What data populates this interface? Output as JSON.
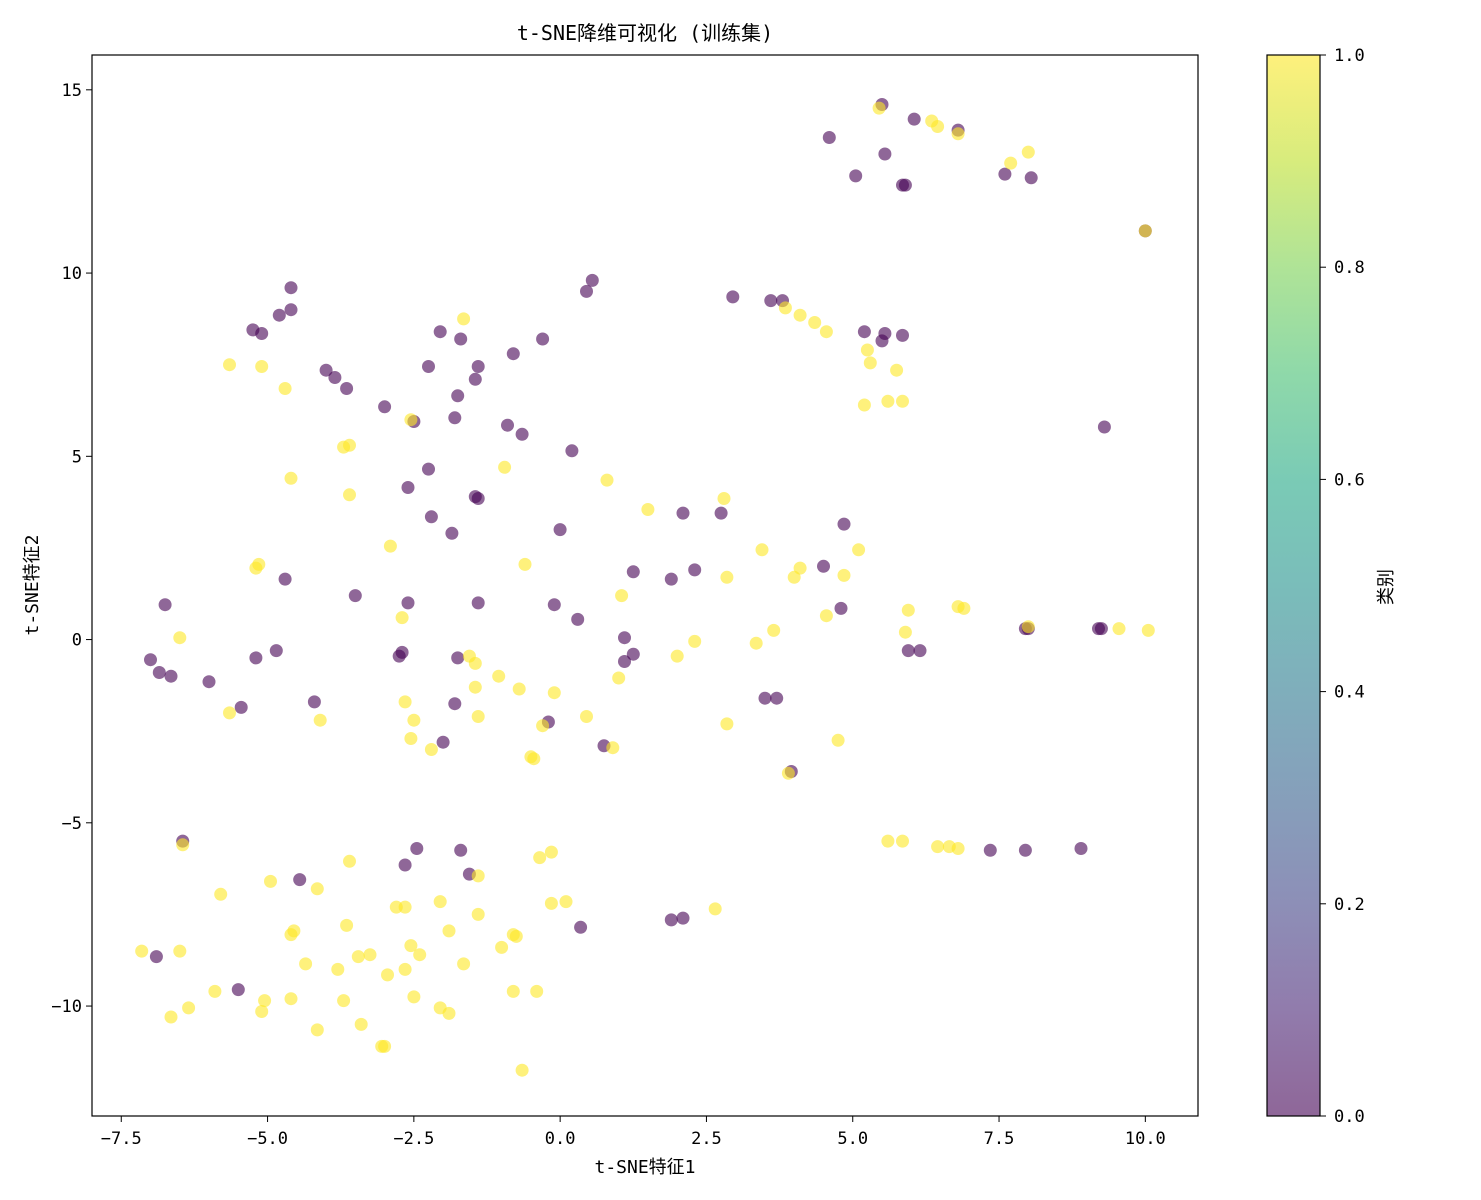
{
  "chart_data": {
    "type": "scatter",
    "title": "t-SNE降维可视化 (训练集)",
    "xlabel": "t-SNE特征1",
    "ylabel": "t-SNE特征2",
    "xlim": [
      -8.0,
      10.9
    ],
    "ylim": [
      -13.0,
      15.95
    ],
    "xticks": [
      -7.5,
      -5.0,
      -2.5,
      0.0,
      2.5,
      5.0,
      7.5,
      10.0
    ],
    "xtick_labels": [
      "−7.5",
      "−5.0",
      "−2.5",
      "0.0",
      "2.5",
      "5.0",
      "7.5",
      "10.0"
    ],
    "yticks": [
      -10,
      -5,
      0,
      5,
      10,
      15
    ],
    "ytick_labels": [
      "−10",
      "−5",
      "0",
      "5",
      "10",
      "15"
    ],
    "grid": false,
    "colormap": "viridis",
    "marker_alpha": 0.6,
    "class_colors": {
      "0": "#440154",
      "1": "#fde725"
    },
    "colorbar": {
      "label": "类别",
      "range": [
        0.0,
        1.0
      ],
      "ticks": [
        0.0,
        0.2,
        0.4,
        0.6,
        0.8,
        1.0
      ],
      "tick_labels": [
        "0.0",
        "0.2",
        "0.4",
        "0.6",
        "0.8",
        "1.0"
      ]
    },
    "points": [
      {
        "x": 5.5,
        "y": 14.6,
        "c": 0
      },
      {
        "x": 6.05,
        "y": 14.2,
        "c": 0
      },
      {
        "x": 6.8,
        "y": 13.9,
        "c": 0
      },
      {
        "x": 4.6,
        "y": 13.7,
        "c": 0
      },
      {
        "x": 5.55,
        "y": 13.25,
        "c": 0
      },
      {
        "x": 5.05,
        "y": 12.65,
        "c": 0
      },
      {
        "x": 5.85,
        "y": 12.4,
        "c": 0
      },
      {
        "x": 5.9,
        "y": 12.4,
        "c": 0
      },
      {
        "x": 7.6,
        "y": 12.7,
        "c": 0
      },
      {
        "x": 8.05,
        "y": 12.6,
        "c": 0
      },
      {
        "x": 10.0,
        "y": 11.15,
        "c": 0
      },
      {
        "x": 0.55,
        "y": 9.8,
        "c": 0
      },
      {
        "x": 0.45,
        "y": 9.5,
        "c": 0
      },
      {
        "x": 2.95,
        "y": 9.35,
        "c": 0
      },
      {
        "x": 3.6,
        "y": 9.25,
        "c": 0
      },
      {
        "x": 3.8,
        "y": 9.25,
        "c": 0
      },
      {
        "x": -4.6,
        "y": 9.6,
        "c": 0
      },
      {
        "x": -4.6,
        "y": 9.0,
        "c": 0
      },
      {
        "x": -4.8,
        "y": 8.85,
        "c": 0
      },
      {
        "x": -5.25,
        "y": 8.45,
        "c": 0
      },
      {
        "x": -5.1,
        "y": 8.35,
        "c": 0
      },
      {
        "x": -2.05,
        "y": 8.4,
        "c": 0
      },
      {
        "x": -1.7,
        "y": 8.2,
        "c": 0
      },
      {
        "x": -0.3,
        "y": 8.2,
        "c": 0
      },
      {
        "x": -0.8,
        "y": 7.8,
        "c": 0
      },
      {
        "x": -2.25,
        "y": 7.45,
        "c": 0
      },
      {
        "x": -1.4,
        "y": 7.45,
        "c": 0
      },
      {
        "x": -1.45,
        "y": 7.1,
        "c": 0
      },
      {
        "x": -4.0,
        "y": 7.35,
        "c": 0
      },
      {
        "x": -3.85,
        "y": 7.15,
        "c": 0
      },
      {
        "x": -3.65,
        "y": 6.85,
        "c": 0
      },
      {
        "x": -1.75,
        "y": 6.65,
        "c": 0
      },
      {
        "x": -3.0,
        "y": 6.35,
        "c": 0
      },
      {
        "x": -1.8,
        "y": 6.05,
        "c": 0
      },
      {
        "x": -2.5,
        "y": 5.95,
        "c": 0
      },
      {
        "x": -0.9,
        "y": 5.85,
        "c": 0
      },
      {
        "x": -0.65,
        "y": 5.6,
        "c": 0
      },
      {
        "x": 0.2,
        "y": 5.15,
        "c": 0
      },
      {
        "x": 5.2,
        "y": 8.4,
        "c": 0
      },
      {
        "x": 5.5,
        "y": 8.15,
        "c": 0
      },
      {
        "x": 5.55,
        "y": 8.35,
        "c": 0
      },
      {
        "x": 5.85,
        "y": 8.3,
        "c": 0
      },
      {
        "x": 9.3,
        "y": 5.8,
        "c": 0
      },
      {
        "x": -2.25,
        "y": 4.65,
        "c": 0
      },
      {
        "x": -2.6,
        "y": 4.15,
        "c": 0
      },
      {
        "x": -1.45,
        "y": 3.9,
        "c": 0
      },
      {
        "x": -1.4,
        "y": 3.85,
        "c": 0
      },
      {
        "x": -2.2,
        "y": 3.35,
        "c": 0
      },
      {
        "x": -1.85,
        "y": 2.9,
        "c": 0
      },
      {
        "x": 0.0,
        "y": 3.0,
        "c": 0
      },
      {
        "x": 2.1,
        "y": 3.45,
        "c": 0
      },
      {
        "x": 2.75,
        "y": 3.45,
        "c": 0
      },
      {
        "x": 4.85,
        "y": 3.15,
        "c": 0
      },
      {
        "x": 1.25,
        "y": 1.85,
        "c": 0
      },
      {
        "x": 1.9,
        "y": 1.65,
        "c": 0
      },
      {
        "x": 2.3,
        "y": 1.9,
        "c": 0
      },
      {
        "x": 4.5,
        "y": 2.0,
        "c": 0
      },
      {
        "x": -4.7,
        "y": 1.65,
        "c": 0
      },
      {
        "x": -3.5,
        "y": 1.2,
        "c": 0
      },
      {
        "x": -2.6,
        "y": 1.0,
        "c": 0
      },
      {
        "x": -1.4,
        "y": 1.0,
        "c": 0
      },
      {
        "x": -0.1,
        "y": 0.95,
        "c": 0
      },
      {
        "x": -6.75,
        "y": 0.95,
        "c": 0
      },
      {
        "x": 0.3,
        "y": 0.55,
        "c": 0
      },
      {
        "x": 4.8,
        "y": 0.85,
        "c": 0
      },
      {
        "x": 1.1,
        "y": 0.05,
        "c": 0
      },
      {
        "x": 1.25,
        "y": -0.4,
        "c": 0
      },
      {
        "x": 1.1,
        "y": -0.6,
        "c": 0
      },
      {
        "x": -7.0,
        "y": -0.55,
        "c": 0
      },
      {
        "x": -6.85,
        "y": -0.9,
        "c": 0
      },
      {
        "x": -6.65,
        "y": -1.0,
        "c": 0
      },
      {
        "x": -6.0,
        "y": -1.15,
        "c": 0
      },
      {
        "x": -5.2,
        "y": -0.5,
        "c": 0
      },
      {
        "x": -4.85,
        "y": -0.3,
        "c": 0
      },
      {
        "x": -2.7,
        "y": -0.35,
        "c": 0
      },
      {
        "x": -2.75,
        "y": -0.45,
        "c": 0
      },
      {
        "x": -1.75,
        "y": -0.5,
        "c": 0
      },
      {
        "x": -4.2,
        "y": -1.7,
        "c": 0
      },
      {
        "x": -5.45,
        "y": -1.85,
        "c": 0
      },
      {
        "x": -1.8,
        "y": -1.75,
        "c": 0
      },
      {
        "x": -0.2,
        "y": -2.25,
        "c": 0
      },
      {
        "x": -2.0,
        "y": -2.8,
        "c": 0
      },
      {
        "x": 0.75,
        "y": -2.9,
        "c": 0
      },
      {
        "x": 3.5,
        "y": -1.6,
        "c": 0
      },
      {
        "x": 3.7,
        "y": -1.6,
        "c": 0
      },
      {
        "x": 3.95,
        "y": -3.6,
        "c": 0
      },
      {
        "x": 5.95,
        "y": -0.3,
        "c": 0
      },
      {
        "x": 6.15,
        "y": -0.3,
        "c": 0
      },
      {
        "x": 7.95,
        "y": 0.3,
        "c": 0
      },
      {
        "x": 8.0,
        "y": 0.3,
        "c": 0
      },
      {
        "x": 9.2,
        "y": 0.3,
        "c": 0
      },
      {
        "x": 9.25,
        "y": 0.3,
        "c": 0
      },
      {
        "x": -6.45,
        "y": -5.5,
        "c": 0
      },
      {
        "x": -2.45,
        "y": -5.7,
        "c": 0
      },
      {
        "x": -1.7,
        "y": -5.75,
        "c": 0
      },
      {
        "x": -2.65,
        "y": -6.15,
        "c": 0
      },
      {
        "x": -1.55,
        "y": -6.4,
        "c": 0
      },
      {
        "x": -4.45,
        "y": -6.55,
        "c": 0
      },
      {
        "x": 1.9,
        "y": -7.65,
        "c": 0
      },
      {
        "x": 2.1,
        "y": -7.6,
        "c": 0
      },
      {
        "x": 0.35,
        "y": -7.85,
        "c": 0
      },
      {
        "x": -6.9,
        "y": -8.65,
        "c": 0
      },
      {
        "x": -5.5,
        "y": -9.55,
        "c": 0
      },
      {
        "x": 7.35,
        "y": -5.75,
        "c": 0
      },
      {
        "x": 7.95,
        "y": -5.75,
        "c": 0
      },
      {
        "x": 8.9,
        "y": -5.7,
        "c": 0
      },
      {
        "x": 5.45,
        "y": 14.5,
        "c": 1
      },
      {
        "x": 6.35,
        "y": 14.15,
        "c": 1
      },
      {
        "x": 6.45,
        "y": 14.0,
        "c": 1
      },
      {
        "x": 6.8,
        "y": 13.8,
        "c": 1
      },
      {
        "x": 7.7,
        "y": 13.0,
        "c": 1
      },
      {
        "x": 8.0,
        "y": 13.3,
        "c": 1
      },
      {
        "x": 10.0,
        "y": 11.15,
        "c": 1
      },
      {
        "x": -1.65,
        "y": 8.75,
        "c": 1
      },
      {
        "x": 3.85,
        "y": 9.05,
        "c": 1
      },
      {
        "x": 4.1,
        "y": 8.85,
        "c": 1
      },
      {
        "x": 4.35,
        "y": 8.65,
        "c": 1
      },
      {
        "x": 4.55,
        "y": 8.4,
        "c": 1
      },
      {
        "x": 5.25,
        "y": 7.9,
        "c": 1
      },
      {
        "x": 5.3,
        "y": 7.55,
        "c": 1
      },
      {
        "x": 5.75,
        "y": 7.35,
        "c": 1
      },
      {
        "x": 5.2,
        "y": 6.4,
        "c": 1
      },
      {
        "x": 5.6,
        "y": 6.5,
        "c": 1
      },
      {
        "x": 5.85,
        "y": 6.5,
        "c": 1
      },
      {
        "x": -5.65,
        "y": 7.5,
        "c": 1
      },
      {
        "x": -5.1,
        "y": 7.45,
        "c": 1
      },
      {
        "x": -4.7,
        "y": 6.85,
        "c": 1
      },
      {
        "x": -2.55,
        "y": 6.0,
        "c": 1
      },
      {
        "x": -3.7,
        "y": 5.25,
        "c": 1
      },
      {
        "x": -3.6,
        "y": 5.3,
        "c": 1
      },
      {
        "x": -0.95,
        "y": 4.7,
        "c": 1
      },
      {
        "x": -4.6,
        "y": 4.4,
        "c": 1
      },
      {
        "x": 0.8,
        "y": 4.35,
        "c": 1
      },
      {
        "x": -3.6,
        "y": 3.95,
        "c": 1
      },
      {
        "x": 2.8,
        "y": 3.85,
        "c": 1
      },
      {
        "x": 1.5,
        "y": 3.55,
        "c": 1
      },
      {
        "x": -2.9,
        "y": 2.55,
        "c": 1
      },
      {
        "x": 3.45,
        "y": 2.45,
        "c": 1
      },
      {
        "x": 5.1,
        "y": 2.45,
        "c": 1
      },
      {
        "x": -5.15,
        "y": 2.05,
        "c": 1
      },
      {
        "x": -5.2,
        "y": 1.95,
        "c": 1
      },
      {
        "x": -0.6,
        "y": 2.05,
        "c": 1
      },
      {
        "x": 4.1,
        "y": 1.95,
        "c": 1
      },
      {
        "x": 4.0,
        "y": 1.7,
        "c": 1
      },
      {
        "x": 4.85,
        "y": 1.75,
        "c": 1
      },
      {
        "x": 2.85,
        "y": 1.7,
        "c": 1
      },
      {
        "x": 1.05,
        "y": 1.2,
        "c": 1
      },
      {
        "x": 6.8,
        "y": 0.9,
        "c": 1
      },
      {
        "x": 6.9,
        "y": 0.85,
        "c": 1
      },
      {
        "x": 5.95,
        "y": 0.8,
        "c": 1
      },
      {
        "x": 4.55,
        "y": 0.65,
        "c": 1
      },
      {
        "x": -2.7,
        "y": 0.6,
        "c": 1
      },
      {
        "x": 3.65,
        "y": 0.25,
        "c": 1
      },
      {
        "x": 5.9,
        "y": 0.2,
        "c": 1
      },
      {
        "x": 8.0,
        "y": 0.35,
        "c": 1
      },
      {
        "x": 9.55,
        "y": 0.3,
        "c": 1
      },
      {
        "x": 10.05,
        "y": 0.25,
        "c": 1
      },
      {
        "x": -6.5,
        "y": 0.05,
        "c": 1
      },
      {
        "x": 2.3,
        "y": -0.05,
        "c": 1
      },
      {
        "x": 3.35,
        "y": -0.1,
        "c": 1
      },
      {
        "x": -1.55,
        "y": -0.45,
        "c": 1
      },
      {
        "x": -1.45,
        "y": -0.65,
        "c": 1
      },
      {
        "x": 2.0,
        "y": -0.45,
        "c": 1
      },
      {
        "x": -1.05,
        "y": -1.0,
        "c": 1
      },
      {
        "x": 1.0,
        "y": -1.05,
        "c": 1
      },
      {
        "x": -1.45,
        "y": -1.3,
        "c": 1
      },
      {
        "x": -0.7,
        "y": -1.35,
        "c": 1
      },
      {
        "x": -0.1,
        "y": -1.45,
        "c": 1
      },
      {
        "x": -2.65,
        "y": -1.7,
        "c": 1
      },
      {
        "x": -5.65,
        "y": -2.0,
        "c": 1
      },
      {
        "x": -4.1,
        "y": -2.2,
        "c": 1
      },
      {
        "x": -2.5,
        "y": -2.2,
        "c": 1
      },
      {
        "x": -1.4,
        "y": -2.1,
        "c": 1
      },
      {
        "x": 0.45,
        "y": -2.1,
        "c": 1
      },
      {
        "x": -0.3,
        "y": -2.35,
        "c": 1
      },
      {
        "x": 2.85,
        "y": -2.3,
        "c": 1
      },
      {
        "x": -2.55,
        "y": -2.7,
        "c": 1
      },
      {
        "x": -2.2,
        "y": -3.0,
        "c": 1
      },
      {
        "x": 0.9,
        "y": -2.95,
        "c": 1
      },
      {
        "x": 4.75,
        "y": -2.75,
        "c": 1
      },
      {
        "x": -0.5,
        "y": -3.2,
        "c": 1
      },
      {
        "x": -0.45,
        "y": -3.25,
        "c": 1
      },
      {
        "x": 3.9,
        "y": -3.65,
        "c": 1
      },
      {
        "x": -6.45,
        "y": -5.6,
        "c": 1
      },
      {
        "x": 5.6,
        "y": -5.5,
        "c": 1
      },
      {
        "x": 5.85,
        "y": -5.5,
        "c": 1
      },
      {
        "x": 6.45,
        "y": -5.65,
        "c": 1
      },
      {
        "x": 6.65,
        "y": -5.65,
        "c": 1
      },
      {
        "x": 6.8,
        "y": -5.7,
        "c": 1
      },
      {
        "x": -0.15,
        "y": -5.8,
        "c": 1
      },
      {
        "x": -0.35,
        "y": -5.95,
        "c": 1
      },
      {
        "x": -3.6,
        "y": -6.05,
        "c": 1
      },
      {
        "x": -1.4,
        "y": -6.45,
        "c": 1
      },
      {
        "x": -4.95,
        "y": -6.6,
        "c": 1
      },
      {
        "x": -4.15,
        "y": -6.8,
        "c": 1
      },
      {
        "x": -5.8,
        "y": -6.95,
        "c": 1
      },
      {
        "x": -2.05,
        "y": -7.15,
        "c": 1
      },
      {
        "x": -0.15,
        "y": -7.2,
        "c": 1
      },
      {
        "x": 0.1,
        "y": -7.15,
        "c": 1
      },
      {
        "x": -2.8,
        "y": -7.3,
        "c": 1
      },
      {
        "x": -2.65,
        "y": -7.3,
        "c": 1
      },
      {
        "x": 2.65,
        "y": -7.35,
        "c": 1
      },
      {
        "x": -1.4,
        "y": -7.5,
        "c": 1
      },
      {
        "x": -3.65,
        "y": -7.8,
        "c": 1
      },
      {
        "x": -1.9,
        "y": -7.95,
        "c": 1
      },
      {
        "x": -4.6,
        "y": -8.05,
        "c": 1
      },
      {
        "x": -4.55,
        "y": -7.95,
        "c": 1
      },
      {
        "x": -0.8,
        "y": -8.05,
        "c": 1
      },
      {
        "x": -0.75,
        "y": -8.1,
        "c": 1
      },
      {
        "x": -2.55,
        "y": -8.35,
        "c": 1
      },
      {
        "x": -1.0,
        "y": -8.4,
        "c": 1
      },
      {
        "x": -7.15,
        "y": -8.5,
        "c": 1
      },
      {
        "x": -6.5,
        "y": -8.5,
        "c": 1
      },
      {
        "x": -2.4,
        "y": -8.6,
        "c": 1
      },
      {
        "x": -3.25,
        "y": -8.6,
        "c": 1
      },
      {
        "x": -3.45,
        "y": -8.65,
        "c": 1
      },
      {
        "x": -4.35,
        "y": -8.85,
        "c": 1
      },
      {
        "x": -1.65,
        "y": -8.85,
        "c": 1
      },
      {
        "x": -3.8,
        "y": -9.0,
        "c": 1
      },
      {
        "x": -2.65,
        "y": -9.0,
        "c": 1
      },
      {
        "x": -2.95,
        "y": -9.15,
        "c": 1
      },
      {
        "x": -5.9,
        "y": -9.6,
        "c": 1
      },
      {
        "x": -0.8,
        "y": -9.6,
        "c": 1
      },
      {
        "x": -0.4,
        "y": -9.6,
        "c": 1
      },
      {
        "x": -2.5,
        "y": -9.75,
        "c": 1
      },
      {
        "x": -4.6,
        "y": -9.8,
        "c": 1
      },
      {
        "x": -5.05,
        "y": -9.85,
        "c": 1
      },
      {
        "x": -3.7,
        "y": -9.85,
        "c": 1
      },
      {
        "x": -6.35,
        "y": -10.05,
        "c": 1
      },
      {
        "x": -2.05,
        "y": -10.05,
        "c": 1
      },
      {
        "x": -5.1,
        "y": -10.15,
        "c": 1
      },
      {
        "x": -1.9,
        "y": -10.2,
        "c": 1
      },
      {
        "x": -6.65,
        "y": -10.3,
        "c": 1
      },
      {
        "x": -3.4,
        "y": -10.5,
        "c": 1
      },
      {
        "x": -4.15,
        "y": -10.65,
        "c": 1
      },
      {
        "x": -3.0,
        "y": -11.1,
        "c": 1
      },
      {
        "x": -3.05,
        "y": -11.1,
        "c": 1
      },
      {
        "x": -0.65,
        "y": -11.75,
        "c": 1
      }
    ]
  }
}
